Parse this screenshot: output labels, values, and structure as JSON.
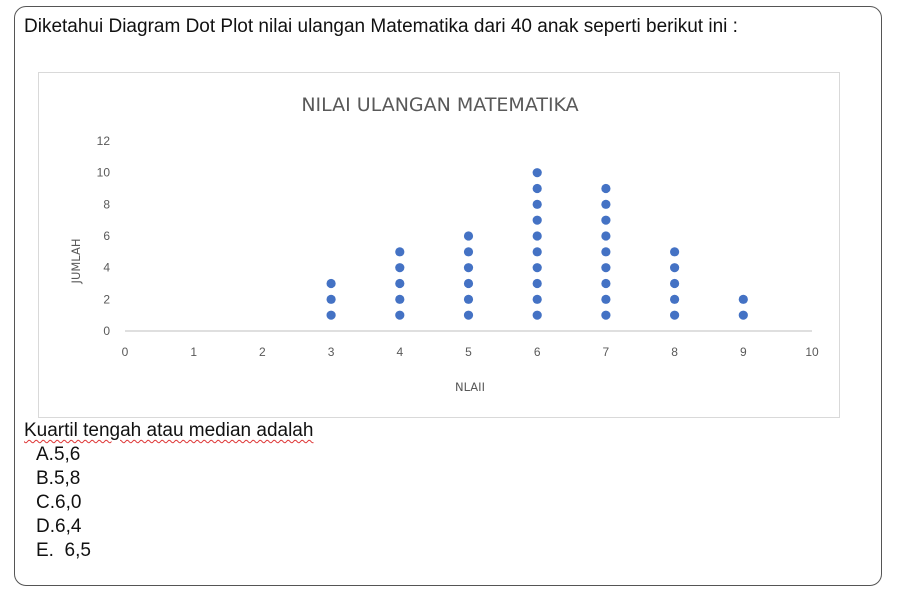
{
  "question": {
    "text": "Diketahui Diagram Dot Plot nilai ulangan Matematika dari 40 anak seperti  berikut ini :"
  },
  "chart_data": {
    "type": "scatter",
    "title": "NILAI ULANGAN MATEMATIKA",
    "xlabel": "NLAII",
    "ylabel": "JUMLAH",
    "xlim": [
      0,
      10
    ],
    "ylim": [
      0,
      12
    ],
    "x_ticks": [
      "0",
      "1",
      "2",
      "3",
      "4",
      "5",
      "6",
      "7",
      "8",
      "9",
      "10"
    ],
    "y_ticks": [
      "0",
      "2",
      "4",
      "6",
      "8",
      "10",
      "12"
    ],
    "categories": [
      3,
      4,
      5,
      6,
      7,
      8,
      9
    ],
    "counts": [
      3,
      5,
      6,
      10,
      9,
      5,
      2
    ],
    "dot_color": "#4472c4",
    "grid": false
  },
  "sub_question": {
    "text": "Kuartil tengah atau median adalah"
  },
  "options": [
    "A.5,6",
    "B.5,8",
    "C.6,0",
    "D.6,4",
    "E.  6,5"
  ]
}
